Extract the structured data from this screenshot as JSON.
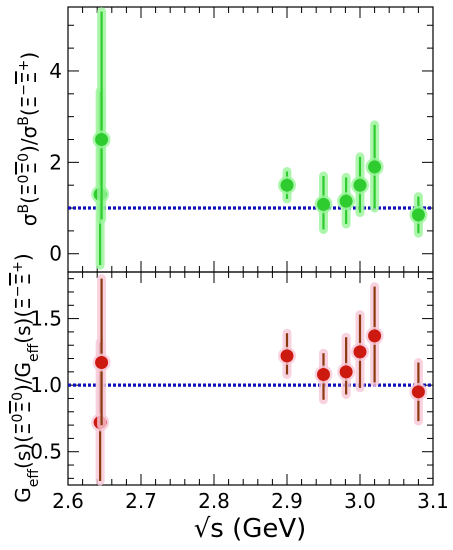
{
  "chart_data": [
    {
      "type": "scatter",
      "panel": "top",
      "ylabel": "σB(Ξ0Ξ̄0)/σB(Ξ−Ξ̄+)",
      "xlim": [
        2.6,
        3.1
      ],
      "ylim": [
        -0.4,
        5.4
      ],
      "yticks": [
        0,
        2,
        4
      ],
      "reference_line": 1.0,
      "colors": {
        "marker": "#2ecc2e",
        "error": "#2ecc2e",
        "glow": "#9bf59b",
        "line": "#1010b8"
      },
      "points": [
        {
          "x": 2.644,
          "y": 1.3,
          "err_lo": 1.55,
          "err_hi": 2.25
        },
        {
          "x": 2.646,
          "y": 2.5,
          "err_lo": 1.75,
          "err_hi": 2.8
        },
        {
          "x": 2.9,
          "y": 1.5,
          "err_lo": 0.3,
          "err_hi": 0.3
        },
        {
          "x": 2.95,
          "y": 1.08,
          "err_lo": 0.55,
          "err_hi": 0.62
        },
        {
          "x": 2.981,
          "y": 1.15,
          "err_lo": 0.5,
          "err_hi": 0.52
        },
        {
          "x": 3.0,
          "y": 1.5,
          "err_lo": 0.6,
          "err_hi": 0.62
        },
        {
          "x": 3.02,
          "y": 1.9,
          "err_lo": 0.9,
          "err_hi": 0.92
        },
        {
          "x": 3.08,
          "y": 0.85,
          "err_lo": 0.4,
          "err_hi": 0.4
        }
      ]
    },
    {
      "type": "scatter",
      "panel": "bottom",
      "ylabel": "Geff(s)(Ξ0Ξ̄0)/Geff(s)(Ξ−Ξ̄+)",
      "xlabel": "√s  (GeV)",
      "xlim": [
        2.6,
        3.1
      ],
      "ylim": [
        0.25,
        1.85
      ],
      "xticks": [
        2.6,
        2.7,
        2.8,
        2.9,
        3.0,
        3.1
      ],
      "xtick_labels": [
        "2.6",
        "2.7",
        "2.8",
        "2.9",
        "3.0",
        "3.1"
      ],
      "yticks": [
        0.5,
        1.0,
        1.5
      ],
      "ytick_labels": [
        "0.5",
        "1.0",
        "1.5"
      ],
      "reference_line": 1.0,
      "colors": {
        "marker": "#cc1a10",
        "error": "#8b3a10",
        "glow": "#f7c8d8",
        "line": "#1010b8"
      },
      "points": [
        {
          "x": 2.644,
          "y": 0.72,
          "err_lo": 0.44,
          "err_hi": 0.6
        },
        {
          "x": 2.646,
          "y": 1.17,
          "err_lo": 0.47,
          "err_hi": 0.63
        },
        {
          "x": 2.9,
          "y": 1.22,
          "err_lo": 0.14,
          "err_hi": 0.17
        },
        {
          "x": 2.95,
          "y": 1.08,
          "err_lo": 0.19,
          "err_hi": 0.16
        },
        {
          "x": 2.981,
          "y": 1.1,
          "err_lo": 0.17,
          "err_hi": 0.26
        },
        {
          "x": 3.0,
          "y": 1.25,
          "err_lo": 0.27,
          "err_hi": 0.28
        },
        {
          "x": 3.02,
          "y": 1.37,
          "err_lo": 0.35,
          "err_hi": 0.37
        },
        {
          "x": 3.08,
          "y": 0.95,
          "err_lo": 0.22,
          "err_hi": 0.22
        }
      ]
    }
  ]
}
